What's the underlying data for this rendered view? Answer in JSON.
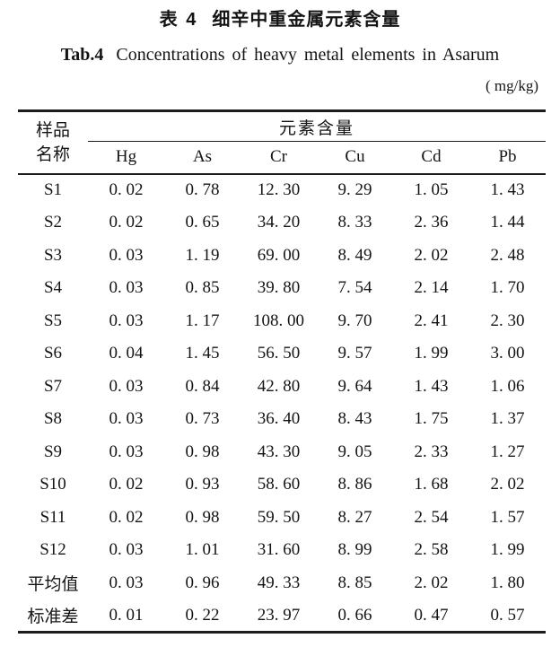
{
  "caption": {
    "zh_label": "表 4",
    "zh_text": "细辛中重金属元素含量",
    "en_label": "Tab.4",
    "en_text": "Concentrations of heavy metal elements in Asarum",
    "unit": "( mg/kg)"
  },
  "table": {
    "col1_header_line1": "样品",
    "col1_header_line2": "名称",
    "group_header": "元素含量",
    "columns": [
      "Hg",
      "As",
      "Cr",
      "Cu",
      "Cd",
      "Pb"
    ],
    "rows": [
      {
        "name": "S1",
        "values": [
          "0. 02",
          "0. 78",
          "12. 30",
          "9. 29",
          "1. 05",
          "1. 43"
        ]
      },
      {
        "name": "S2",
        "values": [
          "0. 02",
          "0. 65",
          "34. 20",
          "8. 33",
          "2. 36",
          "1. 44"
        ]
      },
      {
        "name": "S3",
        "values": [
          "0. 03",
          "1. 19",
          "69. 00",
          "8. 49",
          "2. 02",
          "2. 48"
        ]
      },
      {
        "name": "S4",
        "values": [
          "0. 03",
          "0. 85",
          "39. 80",
          "7. 54",
          "2. 14",
          "1. 70"
        ]
      },
      {
        "name": "S5",
        "values": [
          "0. 03",
          "1. 17",
          "108. 00",
          "9. 70",
          "2. 41",
          "2. 30"
        ]
      },
      {
        "name": "S6",
        "values": [
          "0. 04",
          "1. 45",
          "56. 50",
          "9. 57",
          "1. 99",
          "3. 00"
        ]
      },
      {
        "name": "S7",
        "values": [
          "0. 03",
          "0. 84",
          "42. 80",
          "9. 64",
          "1. 43",
          "1. 06"
        ]
      },
      {
        "name": "S8",
        "values": [
          "0. 03",
          "0. 73",
          "36. 40",
          "8. 43",
          "1. 75",
          "1. 37"
        ]
      },
      {
        "name": "S9",
        "values": [
          "0. 03",
          "0. 98",
          "43. 30",
          "9. 05",
          "2. 33",
          "1. 27"
        ]
      },
      {
        "name": "S10",
        "values": [
          "0. 02",
          "0. 93",
          "58. 60",
          "8. 86",
          "1. 68",
          "2. 02"
        ]
      },
      {
        "name": "S11",
        "values": [
          "0. 02",
          "0. 98",
          "59. 50",
          "8. 27",
          "2. 54",
          "1. 57"
        ]
      },
      {
        "name": "S12",
        "values": [
          "0. 03",
          "1. 01",
          "31. 60",
          "8. 99",
          "2. 58",
          "1. 99"
        ]
      },
      {
        "name": "平均值",
        "values": [
          "0. 03",
          "0. 96",
          "49. 33",
          "8. 85",
          "2. 02",
          "1. 80"
        ]
      },
      {
        "name": "标准差",
        "values": [
          "0. 01",
          "0. 22",
          "23. 97",
          "0. 66",
          "0. 47",
          "0. 57"
        ]
      }
    ]
  },
  "chart_data": {
    "type": "table",
    "title": "表4 细辛中重金属元素含量 / Tab.4 Concentrations of heavy metal elements in Asarum (mg/kg)",
    "categories": [
      "S1",
      "S2",
      "S3",
      "S4",
      "S5",
      "S6",
      "S7",
      "S8",
      "S9",
      "S10",
      "S11",
      "S12",
      "平均值",
      "标准差"
    ],
    "series": [
      {
        "name": "Hg",
        "values": [
          0.02,
          0.02,
          0.03,
          0.03,
          0.03,
          0.04,
          0.03,
          0.03,
          0.03,
          0.02,
          0.02,
          0.03,
          0.03,
          0.01
        ]
      },
      {
        "name": "As",
        "values": [
          0.78,
          0.65,
          1.19,
          0.85,
          1.17,
          1.45,
          0.84,
          0.73,
          0.98,
          0.93,
          0.98,
          1.01,
          0.96,
          0.22
        ]
      },
      {
        "name": "Cr",
        "values": [
          12.3,
          34.2,
          69.0,
          39.8,
          108.0,
          56.5,
          42.8,
          36.4,
          43.3,
          58.6,
          59.5,
          31.6,
          49.33,
          23.97
        ]
      },
      {
        "name": "Cu",
        "values": [
          9.29,
          8.33,
          8.49,
          7.54,
          9.7,
          9.57,
          9.64,
          8.43,
          9.05,
          8.86,
          8.27,
          8.99,
          8.85,
          0.66
        ]
      },
      {
        "name": "Cd",
        "values": [
          1.05,
          2.36,
          2.02,
          2.14,
          2.41,
          1.99,
          1.43,
          1.75,
          2.33,
          1.68,
          2.54,
          2.58,
          2.02,
          0.47
        ]
      },
      {
        "name": "Pb",
        "values": [
          1.43,
          1.44,
          2.48,
          1.7,
          2.3,
          3.0,
          1.06,
          1.37,
          1.27,
          2.02,
          1.57,
          1.99,
          1.8,
          0.57
        ]
      }
    ]
  }
}
